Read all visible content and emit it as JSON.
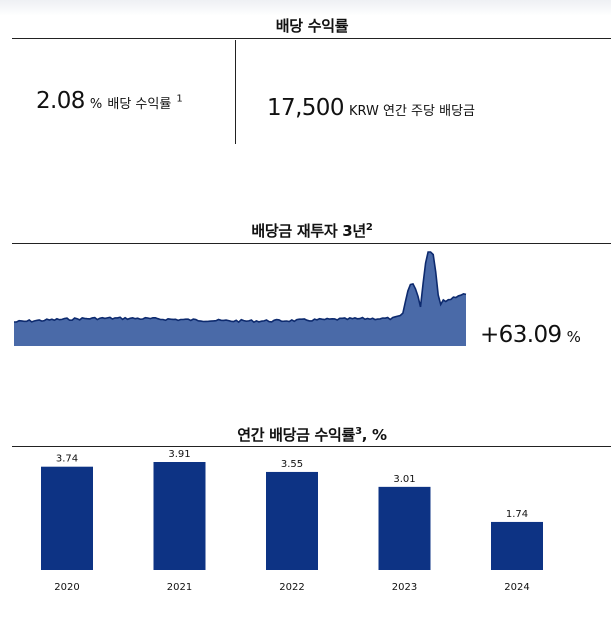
{
  "yield_section": {
    "title": "배당 수익률",
    "yield_value": "2.08",
    "yield_unit": "%",
    "yield_label": "배당 수익률",
    "yield_note": "1",
    "dps_value": "17,500",
    "dps_label": "KRW 연간 주당 배당금"
  },
  "reinvest_section": {
    "title": "배당금 재투자 3년",
    "note": "2",
    "change_value": "+63.09",
    "change_unit": "%",
    "fill_color": "#4a6aa8",
    "line_color": "#0d2a6e"
  },
  "annual_section": {
    "title_main": "연간 배당금 수익률",
    "note": "3",
    "title_suffix": ", %"
  },
  "chart_data": {
    "type": "bar",
    "categories": [
      "2020",
      "2021",
      "2022",
      "2023",
      "2024"
    ],
    "values": [
      3.74,
      3.91,
      3.55,
      3.01,
      1.74
    ],
    "value_labels": [
      "3.74",
      "3.91",
      "3.55",
      "3.01",
      "1.74"
    ],
    "bar_color": "#0d3384"
  }
}
